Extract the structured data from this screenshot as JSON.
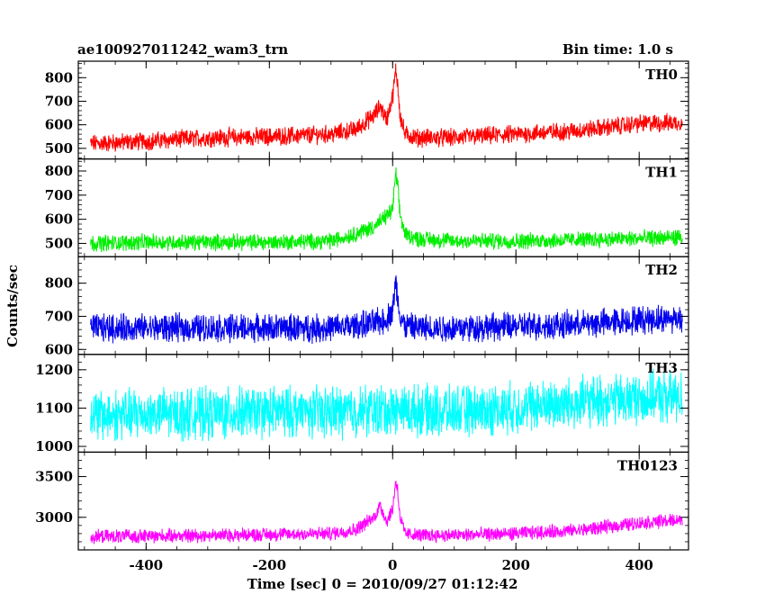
{
  "header": {
    "title": "ae100927011242_wam3_trn",
    "bin_time": "Bin time: 1.0 s"
  },
  "chart_data": {
    "type": "line",
    "xlabel": "Time [sec] 0 = 2010/09/27 01:12:42",
    "ylabel": "Counts/sec",
    "xlim": [
      -510,
      480
    ],
    "xticks": [
      -400,
      -200,
      0,
      200,
      400
    ],
    "series": [
      {
        "name": "TH0",
        "color": "#ff0000",
        "ylim": [
          455,
          870
        ],
        "yticks": [
          500,
          600,
          700,
          800
        ],
        "x": [
          -490,
          -400,
          -300,
          -200,
          -100,
          -60,
          -30,
          -20,
          -10,
          0,
          5,
          8,
          12,
          20,
          40,
          100,
          200,
          300,
          400,
          470
        ],
        "y": [
          520,
          530,
          545,
          550,
          560,
          580,
          640,
          680,
          620,
          720,
          830,
          780,
          640,
          560,
          545,
          545,
          560,
          575,
          605,
          610
        ],
        "noise": 32
      },
      {
        "name": "TH1",
        "color": "#00ee00",
        "ylim": [
          445,
          850
        ],
        "yticks": [
          500,
          600,
          700,
          800
        ],
        "x": [
          -490,
          -400,
          -300,
          -200,
          -100,
          -60,
          -30,
          -15,
          0,
          5,
          8,
          12,
          20,
          40,
          100,
          200,
          300,
          400,
          470
        ],
        "y": [
          500,
          505,
          505,
          505,
          510,
          540,
          570,
          600,
          640,
          790,
          740,
          620,
          540,
          520,
          510,
          510,
          515,
          520,
          525
        ],
        "noise": 28
      },
      {
        "name": "TH2",
        "color": "#0000ee",
        "ylim": [
          585,
          880
        ],
        "yticks": [
          600,
          700,
          800
        ],
        "x": [
          -490,
          -400,
          -300,
          -200,
          -100,
          -40,
          -10,
          0,
          5,
          8,
          12,
          20,
          40,
          100,
          200,
          300,
          400,
          470
        ],
        "y": [
          665,
          665,
          665,
          665,
          665,
          675,
          690,
          720,
          800,
          760,
          700,
          670,
          665,
          665,
          670,
          675,
          690,
          695
        ],
        "noise": 35
      },
      {
        "name": "TH3",
        "color": "#00ffff",
        "ylim": [
          985,
          1240
        ],
        "yticks": [
          1000,
          1100,
          1200
        ],
        "x": [
          -490,
          -400,
          -300,
          -200,
          -100,
          0,
          100,
          200,
          300,
          400,
          470
        ],
        "y": [
          1080,
          1085,
          1085,
          1090,
          1090,
          1095,
          1090,
          1100,
          1115,
          1125,
          1130
        ],
        "noise": 55
      },
      {
        "name": "TH0123",
        "color": "#ff00ff",
        "ylim": [
          2600,
          3800
        ],
        "yticks": [
          3000,
          3500
        ],
        "x": [
          -490,
          -400,
          -300,
          -200,
          -100,
          -60,
          -30,
          -20,
          -10,
          0,
          5,
          8,
          12,
          20,
          40,
          100,
          200,
          300,
          400,
          470
        ],
        "y": [
          2760,
          2770,
          2780,
          2790,
          2800,
          2850,
          3000,
          3150,
          2950,
          3100,
          3450,
          3350,
          3000,
          2800,
          2780,
          2780,
          2800,
          2840,
          2930,
          2970
        ],
        "noise": 70
      }
    ]
  }
}
